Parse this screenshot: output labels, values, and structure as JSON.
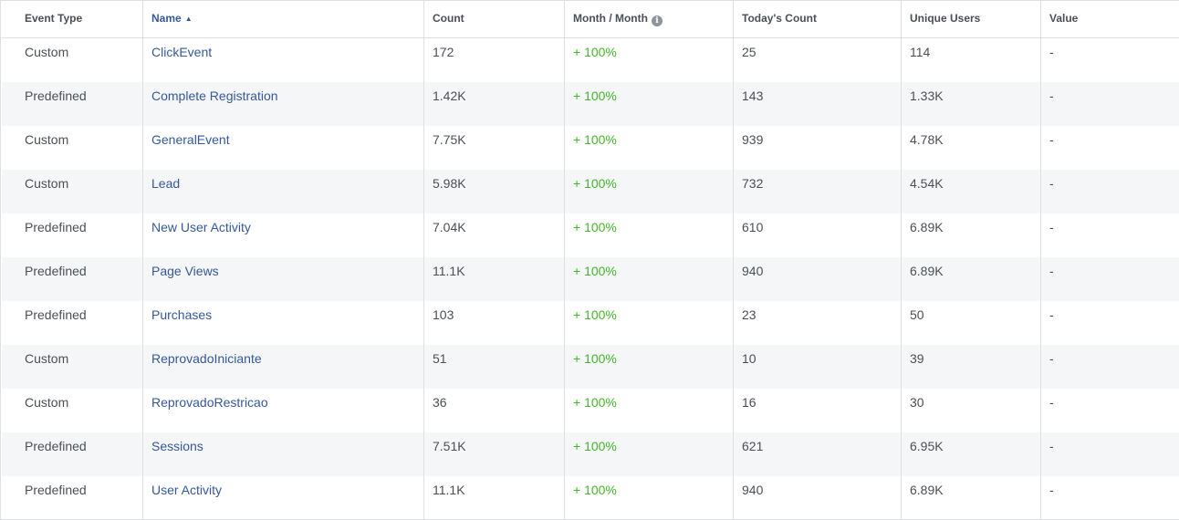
{
  "columns": {
    "event_type": "Event Type",
    "name": "Name",
    "count": "Count",
    "month_month": "Month / Month",
    "todays_count": "Today's Count",
    "unique_users": "Unique Users",
    "value": "Value"
  },
  "icons": {
    "sort": "sort-ascending-icon",
    "info": "info-icon"
  },
  "colors": {
    "link": "#365899",
    "positive": "#42b72a",
    "text": "#4b4f56",
    "alt_row": "#f5f6f7"
  },
  "rows": [
    {
      "type": "Custom",
      "name": "ClickEvent",
      "count": "172",
      "mom": "+ 100%",
      "today": "25",
      "unique": "114",
      "value": "-"
    },
    {
      "type": "Predefined",
      "name": "Complete Registration",
      "count": "1.42K",
      "mom": "+ 100%",
      "today": "143",
      "unique": "1.33K",
      "value": "-"
    },
    {
      "type": "Custom",
      "name": "GeneralEvent",
      "count": "7.75K",
      "mom": "+ 100%",
      "today": "939",
      "unique": "4.78K",
      "value": "-"
    },
    {
      "type": "Custom",
      "name": "Lead",
      "count": "5.98K",
      "mom": "+ 100%",
      "today": "732",
      "unique": "4.54K",
      "value": "-"
    },
    {
      "type": "Predefined",
      "name": "New User Activity",
      "count": "7.04K",
      "mom": "+ 100%",
      "today": "610",
      "unique": "6.89K",
      "value": "-"
    },
    {
      "type": "Predefined",
      "name": "Page Views",
      "count": "11.1K",
      "mom": "+ 100%",
      "today": "940",
      "unique": "6.89K",
      "value": "-"
    },
    {
      "type": "Predefined",
      "name": "Purchases",
      "count": "103",
      "mom": "+ 100%",
      "today": "23",
      "unique": "50",
      "value": "-"
    },
    {
      "type": "Custom",
      "name": "ReprovadoIniciante",
      "count": "51",
      "mom": "+ 100%",
      "today": "10",
      "unique": "39",
      "value": "-"
    },
    {
      "type": "Custom",
      "name": "ReprovadoRestricao",
      "count": "36",
      "mom": "+ 100%",
      "today": "16",
      "unique": "30",
      "value": "-"
    },
    {
      "type": "Predefined",
      "name": "Sessions",
      "count": "7.51K",
      "mom": "+ 100%",
      "today": "621",
      "unique": "6.95K",
      "value": "-"
    },
    {
      "type": "Predefined",
      "name": "User Activity",
      "count": "11.1K",
      "mom": "+ 100%",
      "today": "940",
      "unique": "6.89K",
      "value": "-"
    }
  ]
}
